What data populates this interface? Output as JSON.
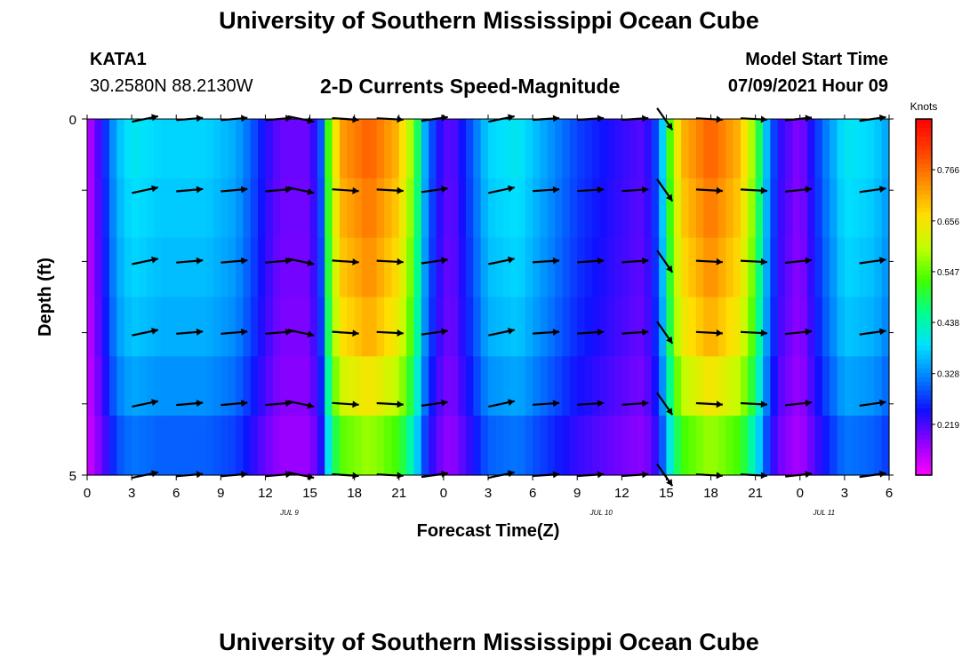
{
  "page": {
    "title_top": "University of Southern Mississippi Ocean Cube",
    "title_bottom": "University of Southern Mississippi Ocean Cube",
    "station": "KATA1",
    "coords": "30.2580N  88.2130W",
    "model_start_label": "Model Start Time",
    "model_start_value": "07/09/2021 Hour 09"
  },
  "chart_data": {
    "type": "heatmap",
    "title": "2-D Currents Speed-Magnitude",
    "xlabel": "Forecast Time(Z)",
    "ylabel": "Depth (ft)",
    "x_ticks": [
      "0",
      "3",
      "6",
      "9",
      "12",
      "15",
      "18",
      "21",
      "0",
      "3",
      "6",
      "9",
      "12",
      "15",
      "18",
      "21",
      "0",
      "3",
      "6"
    ],
    "date_labels": [
      {
        "label": "JUL 9",
        "after_tick": 12
      },
      {
        "label": "JUL 10",
        "after_tick": 12
      },
      {
        "label": "JUL 11",
        "after_tick": 0
      }
    ],
    "y_range": [
      0,
      5
    ],
    "y_tick_labels": [
      "0",
      "5"
    ],
    "x_range_hours": [
      0,
      54
    ],
    "colorbar": {
      "unit": "Knots",
      "labels": [
        "0.766",
        "0.656",
        "0.547",
        "0.438",
        "0.328",
        "0.219"
      ],
      "values": [
        0.766,
        0.656,
        0.547,
        0.438,
        0.328,
        0.219
      ],
      "range": [
        0.11,
        0.875
      ]
    },
    "speed_profile": [
      {
        "hour": 0,
        "speed": 0.14
      },
      {
        "hour": 1,
        "speed": 0.24
      },
      {
        "hour": 2,
        "speed": 0.36
      },
      {
        "hour": 3,
        "speed": 0.4
      },
      {
        "hour": 5,
        "speed": 0.38
      },
      {
        "hour": 8,
        "speed": 0.38
      },
      {
        "hour": 10,
        "speed": 0.35
      },
      {
        "hour": 11,
        "speed": 0.3
      },
      {
        "hour": 12,
        "speed": 0.24
      },
      {
        "hour": 13,
        "speed": 0.2
      },
      {
        "hour": 15,
        "speed": 0.2
      },
      {
        "hour": 15.8,
        "speed": 0.3
      },
      {
        "hour": 16.3,
        "speed": 0.55
      },
      {
        "hour": 17,
        "speed": 0.72
      },
      {
        "hour": 19,
        "speed": 0.78
      },
      {
        "hour": 21,
        "speed": 0.7
      },
      {
        "hour": 22,
        "speed": 0.55
      },
      {
        "hour": 22.7,
        "speed": 0.36
      },
      {
        "hour": 23.5,
        "speed": 0.25
      },
      {
        "hour": 24.5,
        "speed": 0.2
      },
      {
        "hour": 26,
        "speed": 0.3
      },
      {
        "hour": 27,
        "speed": 0.38
      },
      {
        "hour": 29,
        "speed": 0.4
      },
      {
        "hour": 31,
        "speed": 0.34
      },
      {
        "hour": 33,
        "speed": 0.28
      },
      {
        "hour": 36,
        "speed": 0.23
      },
      {
        "hour": 37.5,
        "speed": 0.21
      },
      {
        "hour": 38.5,
        "speed": 0.3
      },
      {
        "hour": 39.3,
        "speed": 0.55
      },
      {
        "hour": 40,
        "speed": 0.7
      },
      {
        "hour": 42,
        "speed": 0.78
      },
      {
        "hour": 44,
        "speed": 0.7
      },
      {
        "hour": 45,
        "speed": 0.55
      },
      {
        "hour": 45.8,
        "speed": 0.35
      },
      {
        "hour": 46.5,
        "speed": 0.24
      },
      {
        "hour": 48,
        "speed": 0.18
      },
      {
        "hour": 49.5,
        "speed": 0.3
      },
      {
        "hour": 51,
        "speed": 0.4
      },
      {
        "hour": 53,
        "speed": 0.38
      },
      {
        "hour": 54,
        "speed": 0.34
      }
    ],
    "depth_factors": [
      1.0,
      0.97,
      0.94,
      0.9,
      0.82,
      0.7
    ],
    "vector_hours": [
      3,
      6,
      9,
      12,
      13.5,
      16.5,
      19.5,
      22.5,
      27,
      30,
      33,
      36,
      38,
      41,
      44,
      47,
      52
    ],
    "vector_depths": [
      0,
      1,
      2,
      3,
      4,
      5
    ],
    "vector_angles_deg": [
      12,
      5,
      5,
      5,
      -12,
      -4,
      -3,
      8,
      12,
      4,
      4,
      4,
      -55,
      -3,
      -3,
      6,
      8
    ]
  }
}
